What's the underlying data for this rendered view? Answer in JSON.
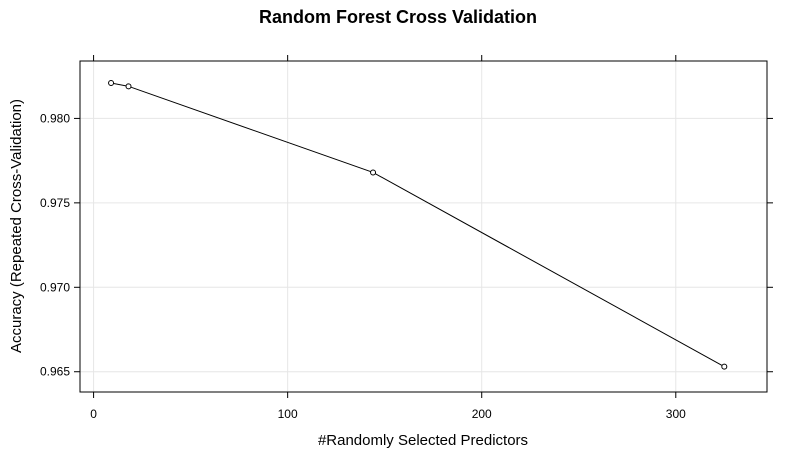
{
  "chart_data": {
    "type": "line",
    "title": "Random Forest Cross Validation",
    "xlabel": "#Randomly Selected Predictors",
    "ylabel": "Accuracy (Repeated Cross-Validation)",
    "xlim": [
      -7,
      347
    ],
    "ylim": [
      0.9638,
      0.9834
    ],
    "x_ticks": [
      0,
      100,
      200,
      300
    ],
    "x_tick_labels": [
      "0",
      "100",
      "200",
      "300"
    ],
    "y_ticks": [
      0.965,
      0.97,
      0.975,
      0.98
    ],
    "y_tick_labels": [
      "0.965",
      "0.970",
      "0.975",
      "0.980"
    ],
    "grid": true,
    "marker": "circle-open",
    "colors": {
      "line": "#000000",
      "grid": "#e6e6e6",
      "frame": "#000000"
    },
    "series": [
      {
        "x": [
          9,
          18,
          144,
          325
        ],
        "y": [
          0.9821,
          0.9819,
          0.9768,
          0.9653
        ]
      }
    ]
  }
}
